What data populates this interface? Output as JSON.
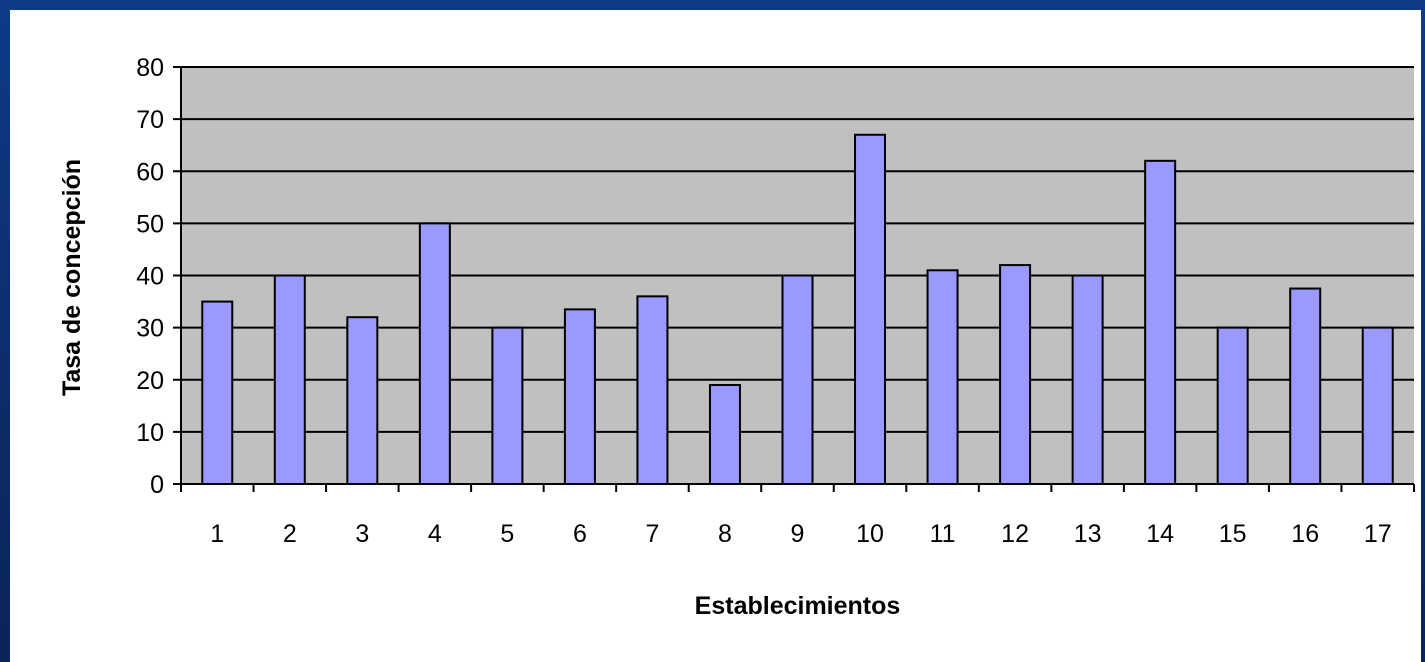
{
  "chart_data": {
    "type": "bar",
    "title": "",
    "xlabel": "Establecimientos",
    "ylabel": "Tasa de concepción",
    "categories": [
      "1",
      "2",
      "3",
      "4",
      "5",
      "6",
      "7",
      "8",
      "9",
      "10",
      "11",
      "12",
      "13",
      "14",
      "15",
      "16",
      "17"
    ],
    "series": [
      {
        "values": [
          35,
          40,
          32,
          50,
          30,
          33.5,
          36,
          19,
          40,
          67,
          41,
          42,
          40,
          62,
          30,
          37.5,
          30
        ]
      }
    ],
    "ylim": [
      0,
      80
    ],
    "yticks": [
      "0",
      "10",
      "20",
      "30",
      "40",
      "50",
      "60",
      "70",
      "80"
    ],
    "grid": true,
    "legend": "none"
  },
  "colors": {
    "plot_background": "#c0c0c0",
    "bar_fill": "#9999ff",
    "bar_stroke": "#000000",
    "frame": "#0b2a63"
  }
}
